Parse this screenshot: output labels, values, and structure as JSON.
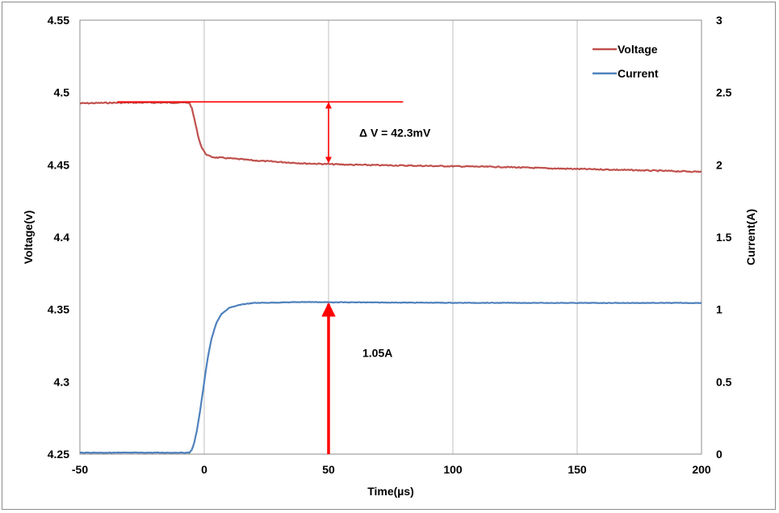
{
  "chart_data": {
    "type": "line",
    "xlabel": "Time(µs)",
    "ylabel": "Voltage(v)",
    "y2label": "Current(A)",
    "xlim": [
      -50,
      200
    ],
    "ylim": [
      4.25,
      4.55
    ],
    "y2lim": [
      0,
      3
    ],
    "x_ticks": [
      "-50",
      "0",
      "50",
      "100",
      "150",
      "200"
    ],
    "y_ticks": [
      "4.25",
      "4.3",
      "4.35",
      "4.4",
      "4.45",
      "4.5",
      "4.55"
    ],
    "y2_ticks": [
      "0",
      "0.5",
      "1",
      "1.5",
      "2",
      "2.5",
      "3"
    ],
    "grid": "vertical",
    "legend": "top-right",
    "colors": {
      "Voltage": "#c0504d",
      "Current": "#4f81bd",
      "annotation": "#ff0000"
    },
    "series": [
      {
        "name": "Voltage",
        "axis": "left",
        "x": [
          -50,
          -40,
          -30,
          -20,
          -10,
          -6,
          -5,
          -4,
          -3,
          -2,
          -1,
          0,
          1,
          2,
          3,
          5,
          8,
          10,
          15,
          20,
          30,
          40,
          50,
          60,
          80,
          100,
          120,
          140,
          160,
          180,
          200
        ],
        "values": [
          4.4925,
          4.4928,
          4.493,
          4.493,
          4.493,
          4.493,
          4.489,
          4.482,
          4.474,
          4.467,
          4.462,
          4.459,
          4.457,
          4.456,
          4.4555,
          4.455,
          4.4548,
          4.4545,
          4.4538,
          4.453,
          4.452,
          4.451,
          4.4505,
          4.45,
          4.4495,
          4.449,
          4.4485,
          4.4475,
          4.4468,
          4.446,
          4.4452
        ]
      },
      {
        "name": "Current",
        "axis": "right",
        "x": [
          -50,
          -30,
          -10,
          -6,
          -5,
          -4,
          -3,
          -2,
          -1,
          0,
          1,
          2,
          3,
          4,
          5,
          7,
          10,
          13,
          15,
          20,
          30,
          40,
          50,
          100,
          150,
          200
        ],
        "values": [
          0.01,
          0.01,
          0.01,
          0.01,
          0.03,
          0.08,
          0.16,
          0.26,
          0.38,
          0.5,
          0.62,
          0.72,
          0.8,
          0.86,
          0.91,
          0.97,
          1.01,
          1.025,
          1.035,
          1.045,
          1.048,
          1.052,
          1.05,
          1.046,
          1.045,
          1.045
        ]
      }
    ],
    "annotations": {
      "delta_v": {
        "label": "Δ V = 42.3mV",
        "ref_from_x": -35,
        "ref_to_x": 80,
        "ref_y": 4.4935,
        "arrow_x": 50,
        "arrow_top": 4.4935,
        "arrow_bottom": 4.451
      },
      "current_level": {
        "label": "1.05A",
        "arrow_x": 50,
        "arrow_from": 0,
        "arrow_to": 1.05
      }
    }
  }
}
